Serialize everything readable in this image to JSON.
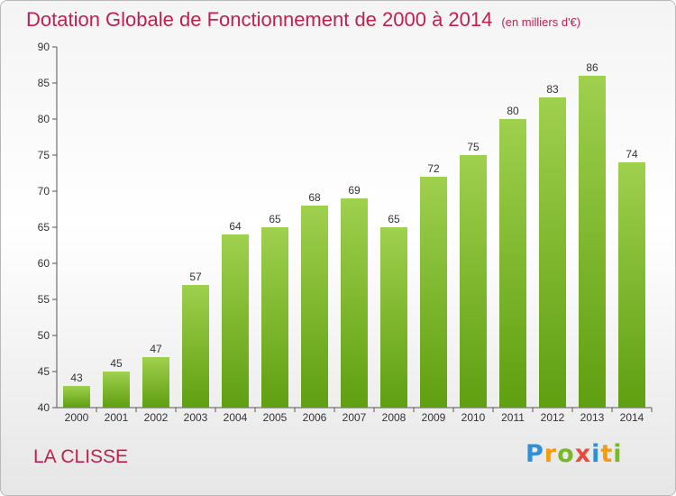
{
  "chart_data": {
    "type": "bar",
    "title": "Dotation Globale de Fonctionnement de 2000 à 2014",
    "unit_note": "(en milliers d'€)",
    "categories": [
      "2000",
      "2001",
      "2002",
      "2003",
      "2004",
      "2005",
      "2006",
      "2007",
      "2008",
      "2009",
      "2010",
      "2011",
      "2012",
      "2013",
      "2014"
    ],
    "values": [
      43,
      45,
      47,
      57,
      64,
      65,
      68,
      69,
      65,
      72,
      75,
      80,
      83,
      86,
      74
    ],
    "ylim": [
      40,
      90
    ],
    "yticks": [
      40,
      45,
      50,
      55,
      60,
      65,
      70,
      75,
      80,
      85,
      90
    ],
    "grid": false,
    "bar_color_top": "#9fd04e",
    "bar_color_bottom": "#5f9f10"
  },
  "commune": "LA CLISSE",
  "logo": {
    "letters": [
      "P",
      "r",
      "o",
      "x",
      "i",
      "t",
      "i"
    ],
    "colors": [
      "#2f8fd8",
      "#f39c12",
      "#7ab829",
      "#e74c3c",
      "#2f8fd8",
      "#f39c12",
      "#7ab829"
    ]
  }
}
